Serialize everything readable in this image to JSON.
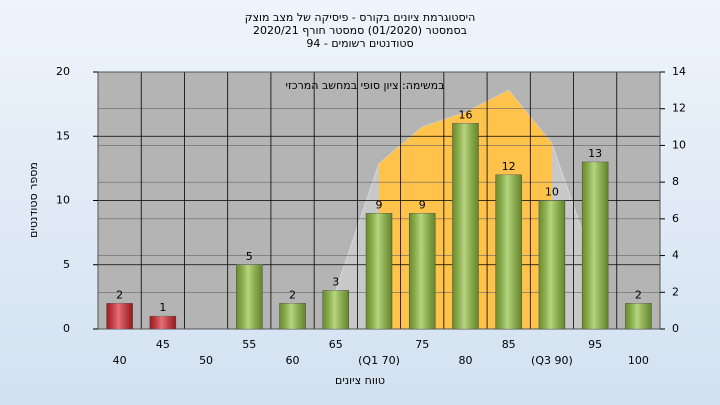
{
  "chart_data": {
    "type": "bar",
    "title": [
      "היסטוגרמת ציונים בקורס - פיסיקה של מצב מוצק",
      "בסמסטר  (01/2020)  סמסטר חורף 2020/21",
      "סטודנטים רשומים - 94"
    ],
    "annotation": "במשימה: ציון סופי במחשב המרכזי",
    "y_label": "מספר סטודנטים",
    "x_label": "טווח ציונים",
    "categories": [
      "40",
      "45",
      "50",
      "55",
      "60",
      "65",
      "(Q1 70)",
      "75",
      "80",
      "85",
      "(Q3 90)",
      "95",
      "100"
    ],
    "values": [
      2,
      1,
      null,
      5,
      2,
      3,
      9,
      9,
      16,
      12,
      10,
      13,
      2
    ],
    "colors": [
      "#d8232a",
      "#d8232a",
      "#8fbf3a",
      "#8fbf3a",
      "#8fbf3a",
      "#8fbf3a",
      "#8fbf3a",
      "#8fbf3a",
      "#8fbf3a",
      "#8fbf3a",
      "#8fbf3a",
      "#8fbf3a",
      "#8fbf3a"
    ],
    "series": [
      {
        "color": "#c8c8c8",
        "axis": "y2",
        "values": [
          null,
          null,
          null,
          null,
          null,
          2.1,
          9,
          11,
          11.8,
          13,
          10.1,
          3.3,
          null
        ]
      },
      {
        "color": "#ffc24a",
        "axis": "y2",
        "values": [
          null,
          null,
          null,
          null,
          null,
          null,
          9,
          11,
          11.8,
          13,
          10.1,
          null,
          null
        ]
      }
    ],
    "ylim": [
      0,
      20
    ],
    "yticks": [
      0,
      5,
      10,
      15,
      20
    ],
    "y2lim": [
      0,
      14
    ],
    "y2ticks": [
      0,
      2,
      4,
      6,
      8,
      10,
      12,
      14
    ],
    "grid": true
  }
}
